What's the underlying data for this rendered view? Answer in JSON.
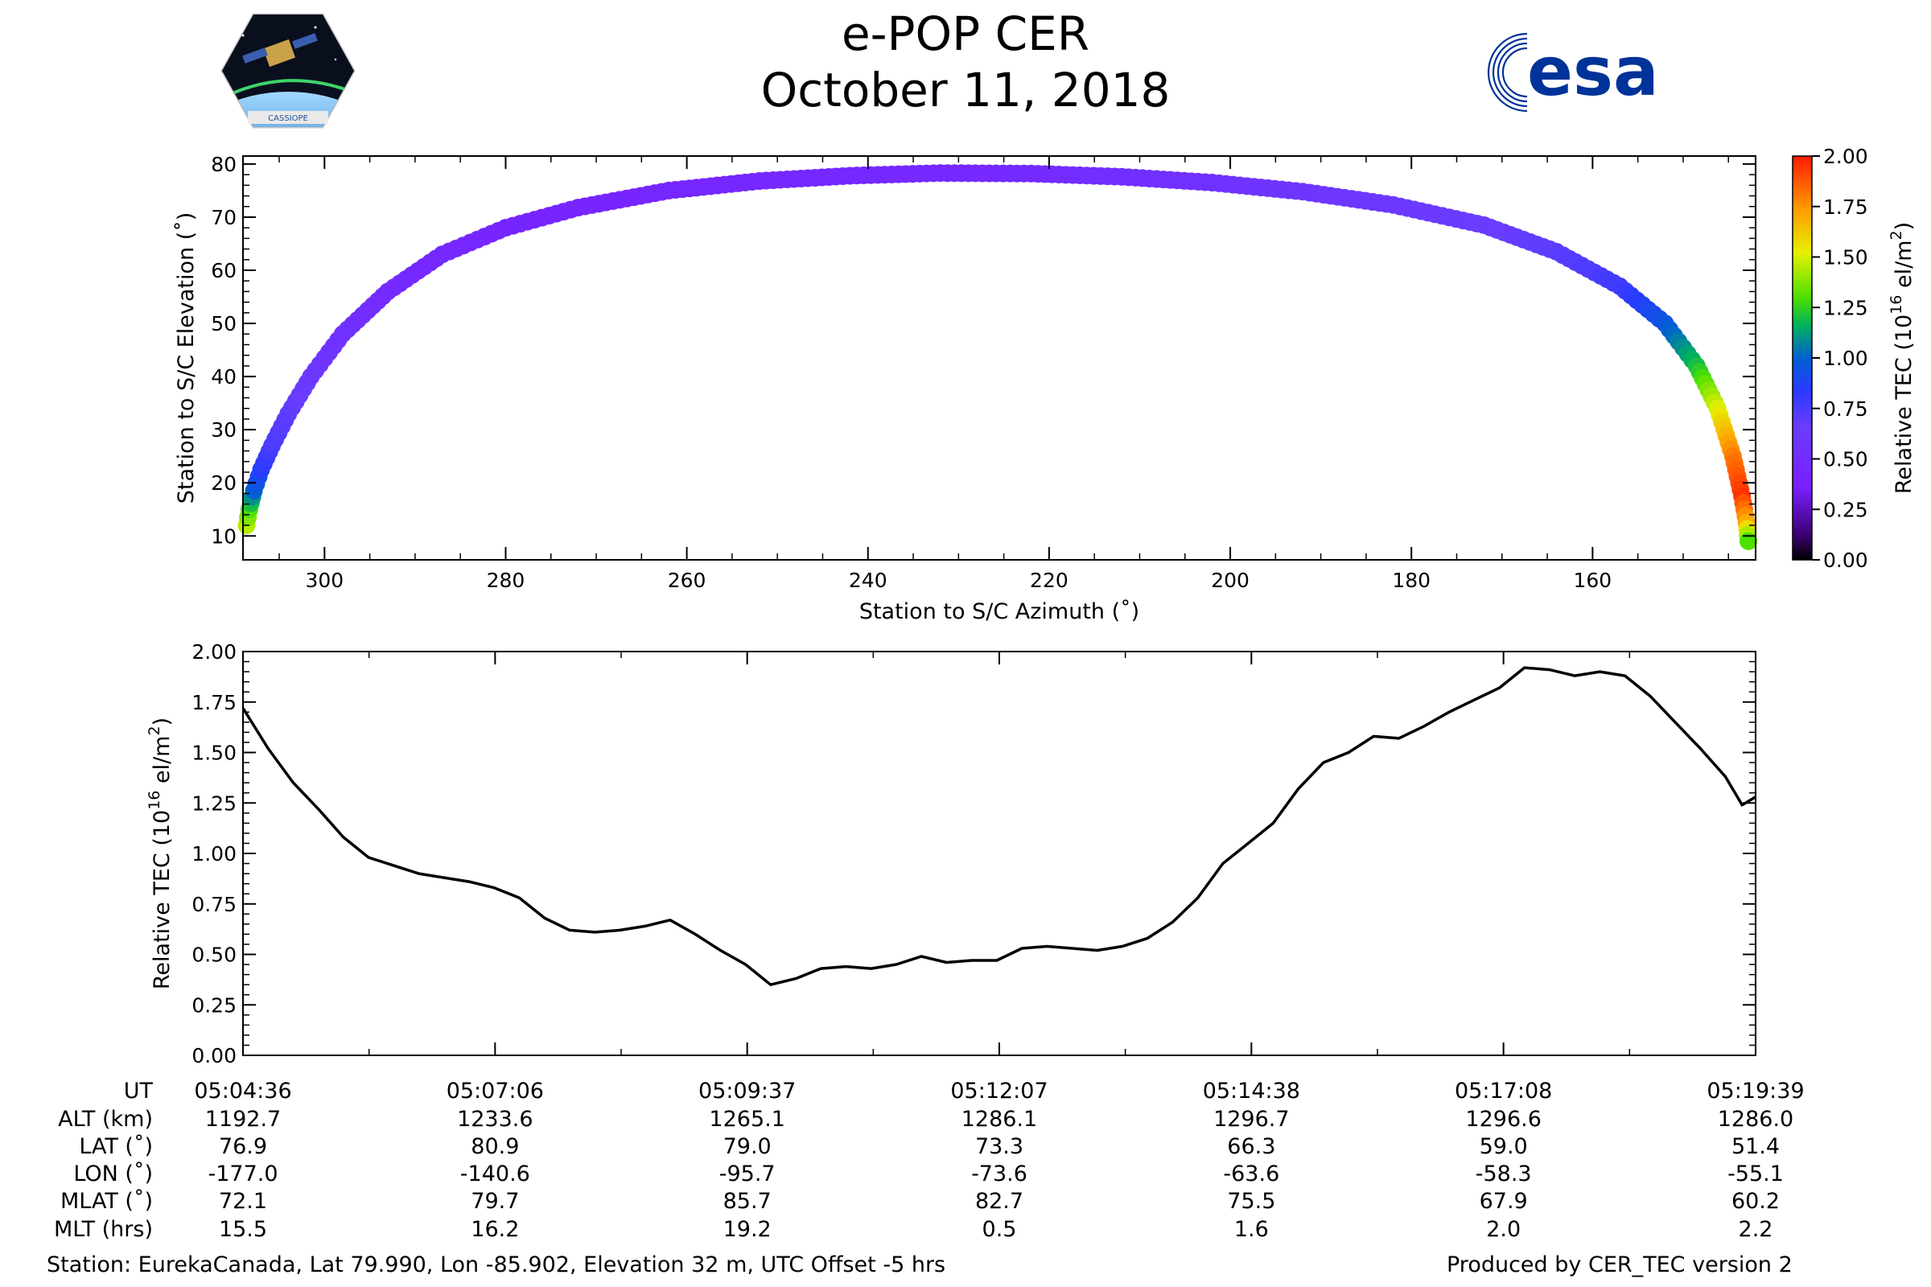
{
  "header": {
    "title": "e-POP CER",
    "date": "October 11, 2018",
    "left_logo": {
      "name": "CASSIOPE mission patch",
      "text": "CASSIOPE"
    },
    "right_logo": {
      "name": "ESA logo",
      "text": "esa",
      "color": "#003399"
    }
  },
  "footer": {
    "station": "Station: EurekaCanada, Lat 79.990, Lon -85.902, Elevation 32 m, UTC Offset -5 hrs",
    "producer": "Produced by CER_TEC version 2"
  },
  "chart_data": [
    {
      "type": "scatter",
      "xlabel": "Station to S/C Azimuth (˚)",
      "ylabel": "Station to S/C Elevation (˚)",
      "xlim": [
        309,
        142
      ],
      "ylim": [
        5.5,
        81.5
      ],
      "x_inverted": true,
      "xticks": [
        300,
        280,
        260,
        240,
        220,
        200,
        180,
        160
      ],
      "yticks": [
        10,
        20,
        30,
        40,
        50,
        60,
        70,
        80
      ],
      "color_variable": "Relative TEC",
      "colormap": "gnuplot-rainbow (black → purple → blue → green → yellow → red)",
      "points": [
        {
          "azimuth": 308.6,
          "elevation": 12.0,
          "tec": 1.45
        },
        {
          "azimuth": 308.3,
          "elevation": 15.0,
          "tec": 1.3
        },
        {
          "azimuth": 307.8,
          "elevation": 18.5,
          "tec": 1.0
        },
        {
          "azimuth": 307.0,
          "elevation": 22.5,
          "tec": 0.85
        },
        {
          "azimuth": 305.8,
          "elevation": 27.0,
          "tec": 0.75
        },
        {
          "azimuth": 304.0,
          "elevation": 33.0,
          "tec": 0.7
        },
        {
          "azimuth": 301.5,
          "elevation": 40.0,
          "tec": 0.62
        },
        {
          "azimuth": 298.0,
          "elevation": 48.0,
          "tec": 0.55
        },
        {
          "azimuth": 293.0,
          "elevation": 56.0,
          "tec": 0.48
        },
        {
          "azimuth": 287.0,
          "elevation": 63.0,
          "tec": 0.45
        },
        {
          "azimuth": 280.0,
          "elevation": 68.0,
          "tec": 0.42
        },
        {
          "azimuth": 272.0,
          "elevation": 71.8,
          "tec": 0.42
        },
        {
          "azimuth": 262.0,
          "elevation": 75.0,
          "tec": 0.43
        },
        {
          "azimuth": 252.0,
          "elevation": 76.8,
          "tec": 0.44
        },
        {
          "azimuth": 242.0,
          "elevation": 77.8,
          "tec": 0.45
        },
        {
          "azimuth": 232.0,
          "elevation": 78.3,
          "tec": 0.45
        },
        {
          "azimuth": 222.0,
          "elevation": 78.2,
          "tec": 0.47
        },
        {
          "azimuth": 212.0,
          "elevation": 77.6,
          "tec": 0.52
        },
        {
          "azimuth": 202.0,
          "elevation": 76.5,
          "tec": 0.55
        },
        {
          "azimuth": 192.0,
          "elevation": 74.8,
          "tec": 0.6
        },
        {
          "azimuth": 182.0,
          "elevation": 72.3,
          "tec": 0.62
        },
        {
          "azimuth": 172.0,
          "elevation": 68.5,
          "tec": 0.65
        },
        {
          "azimuth": 164.0,
          "elevation": 63.5,
          "tec": 0.7
        },
        {
          "azimuth": 157.0,
          "elevation": 57.0,
          "tec": 0.78
        },
        {
          "azimuth": 152.0,
          "elevation": 50.0,
          "tec": 0.95
        },
        {
          "azimuth": 148.5,
          "elevation": 42.0,
          "tec": 1.2
        },
        {
          "azimuth": 146.2,
          "elevation": 34.0,
          "tec": 1.5
        },
        {
          "azimuth": 144.5,
          "elevation": 25.0,
          "tec": 1.8
        },
        {
          "azimuth": 143.5,
          "elevation": 17.5,
          "tec": 1.95
        },
        {
          "azimuth": 143.0,
          "elevation": 12.5,
          "tec": 1.7
        },
        {
          "azimuth": 142.8,
          "elevation": 9.0,
          "tec": 1.3
        }
      ]
    },
    {
      "type": "colorbar",
      "label": "Relative TEC (10^16 el/m^2)",
      "label_main": "Relative TEC (10",
      "label_exp": "16",
      "label_unit": " el/m",
      "label_exp2": "2",
      "label_close": ")",
      "range": [
        0,
        2
      ],
      "ticks": [
        "0.00",
        "0.25",
        "0.50",
        "0.75",
        "1.00",
        "1.25",
        "1.50",
        "1.75",
        "2.00"
      ]
    },
    {
      "type": "line",
      "ylabel": "Relative TEC (10^16 el/m^2)",
      "ylabel_main": "Relative TEC (10",
      "ylabel_exp": "16",
      "ylabel_unit": " el/m",
      "ylabel_exp2": "2",
      "ylabel_close": ")",
      "xlim": [
        0,
        903
      ],
      "ylim": [
        0,
        2
      ],
      "yticks": [
        "0.00",
        "0.25",
        "0.50",
        "0.75",
        "1.00",
        "1.25",
        "1.50",
        "1.75",
        "2.00"
      ],
      "x_unit": "seconds since 05:04:36 UT",
      "series": [
        {
          "color": "#000000",
          "x": [
            0,
            15,
            30,
            45,
            60,
            75,
            90,
            105,
            120,
            135,
            150,
            165,
            180,
            195,
            210,
            225,
            240,
            255,
            270,
            285,
            300,
            315,
            330,
            345,
            360,
            375,
            390,
            405,
            420,
            435,
            450,
            465,
            480,
            495,
            510,
            525,
            540,
            555,
            570,
            585,
            600,
            615,
            630,
            645,
            660,
            675,
            690,
            705,
            720,
            735,
            750,
            765,
            780,
            795,
            810,
            825,
            840,
            855,
            870,
            885,
            895,
            903
          ],
          "y": [
            1.72,
            1.52,
            1.35,
            1.22,
            1.08,
            0.98,
            0.94,
            0.9,
            0.88,
            0.86,
            0.83,
            0.78,
            0.68,
            0.62,
            0.61,
            0.62,
            0.64,
            0.67,
            0.6,
            0.52,
            0.45,
            0.35,
            0.38,
            0.43,
            0.44,
            0.43,
            0.45,
            0.49,
            0.46,
            0.47,
            0.47,
            0.53,
            0.54,
            0.53,
            0.52,
            0.54,
            0.58,
            0.66,
            0.78,
            0.95,
            1.05,
            1.15,
            1.32,
            1.45,
            1.5,
            1.58,
            1.57,
            1.63,
            1.7,
            1.76,
            1.82,
            1.92,
            1.91,
            1.88,
            1.9,
            1.88,
            1.78,
            1.65,
            1.52,
            1.38,
            1.24,
            1.28
          ]
        }
      ]
    }
  ],
  "table": {
    "row_labels": [
      "UT",
      "ALT (km)",
      "LAT (˚)",
      "LON (˚)",
      "MLAT (˚)",
      "MLT (hrs)"
    ],
    "columns": [
      {
        "UT": "05:04:36",
        "ALT": "1192.7",
        "LAT": "76.9",
        "LON": "-177.0",
        "MLAT": "72.1",
        "MLT": "15.5"
      },
      {
        "UT": "05:07:06",
        "ALT": "1233.6",
        "LAT": "80.9",
        "LON": "-140.6",
        "MLAT": "79.7",
        "MLT": "16.2"
      },
      {
        "UT": "05:09:37",
        "ALT": "1265.1",
        "LAT": "79.0",
        "LON": "-95.7",
        "MLAT": "85.7",
        "MLT": "19.2"
      },
      {
        "UT": "05:12:07",
        "ALT": "1286.1",
        "LAT": "73.3",
        "LON": "-73.6",
        "MLAT": "82.7",
        "MLT": "0.5"
      },
      {
        "UT": "05:14:38",
        "ALT": "1296.7",
        "LAT": "66.3",
        "LON": "-63.6",
        "MLAT": "75.5",
        "MLT": "1.6"
      },
      {
        "UT": "05:17:08",
        "ALT": "1296.6",
        "LAT": "59.0",
        "LON": "-58.3",
        "MLAT": "67.9",
        "MLT": "2.0"
      },
      {
        "UT": "05:19:39",
        "ALT": "1286.0",
        "LAT": "51.4",
        "LON": "-55.1",
        "MLAT": "60.2",
        "MLT": "2.2"
      }
    ]
  }
}
